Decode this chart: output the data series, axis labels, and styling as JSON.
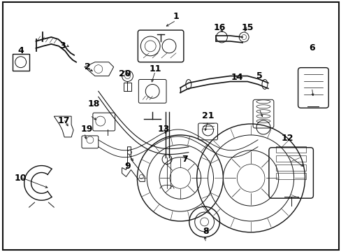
{
  "bg_color": "#ffffff",
  "border_color": "#000000",
  "fig_width": 4.89,
  "fig_height": 3.6,
  "dpi": 100,
  "image_b64": ""
}
